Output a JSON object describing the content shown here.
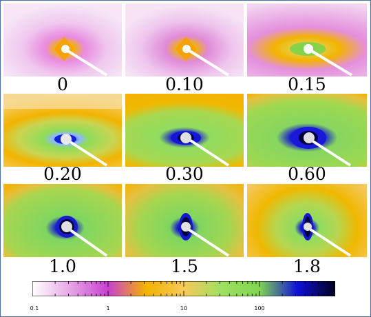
{
  "panels": [
    {
      "label": "0"
    },
    {
      "label": "0.10"
    },
    {
      "label": "0.15"
    },
    {
      "label": "0.20"
    },
    {
      "label": "0.30"
    },
    {
      "label": "0.60"
    },
    {
      "label": "1.0"
    },
    {
      "label": "1.5"
    },
    {
      "label": "1.8"
    }
  ],
  "colorbar": {
    "scale": "log",
    "range": [
      0.1,
      1000
    ],
    "tick_labels": [
      "0.1",
      "1",
      "10",
      "100"
    ],
    "colors": [
      "#ffffff",
      "#e7a6e6",
      "#c83fd1",
      "#f3b300",
      "#f6c95a",
      "#a0e060",
      "#7fd650",
      "#1010d8",
      "#000020"
    ]
  }
}
